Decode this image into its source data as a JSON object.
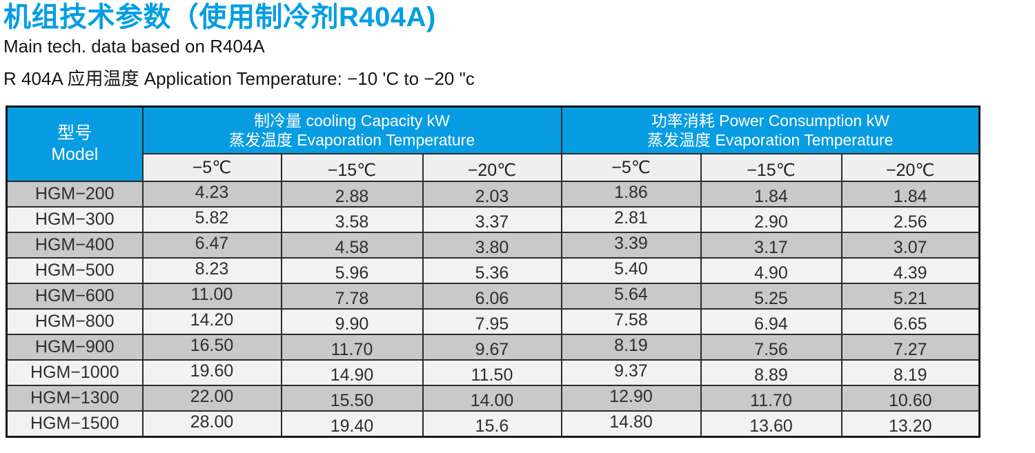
{
  "page": {
    "title": "机组技术参数（使用制冷剂R404A)",
    "subtitle": "Main tech. data based on R404A",
    "application_note": "R 404A 应用温度 Application Temperature: −10 'C to −20 \"c"
  },
  "colors": {
    "accent_cyan": "#009EE3",
    "table_header_blue": "#089CE2",
    "row_dark_gray": "#C9C9C9",
    "row_light_gray": "#F2F2F2",
    "subheader_gray": "#EFEFEF"
  },
  "table": {
    "model_header": {
      "zh": "型号",
      "en": "Model"
    },
    "groups": [
      {
        "line1": "制冷量 cooling Capacity kW",
        "line2": "蒸发温度 Evaporation Temperature"
      },
      {
        "line1": "功率消耗 Power Consumption kW",
        "line2": "蒸发温度 Evaporation Temperature"
      }
    ],
    "temp_headers": [
      "−5℃",
      "−15℃",
      "−20℃",
      "−5℃",
      "−15℃",
      "−20℃"
    ],
    "rows": [
      {
        "model": "HGM−200",
        "values": [
          "4.23",
          "2.88",
          "2.03",
          "1.86",
          "1.84",
          "1.84"
        ]
      },
      {
        "model": "HGM−300",
        "values": [
          "5.82",
          "3.58",
          "3.37",
          "2.81",
          "2.90",
          "2.56"
        ]
      },
      {
        "model": "HGM−400",
        "values": [
          "6.47",
          "4.58",
          "3.80",
          "3.39",
          "3.17",
          "3.07"
        ]
      },
      {
        "model": "HGM−500",
        "values": [
          "8.23",
          "5.96",
          "5.36",
          "5.40",
          "4.90",
          "4.39"
        ]
      },
      {
        "model": "HGM−600",
        "values": [
          "11.00",
          "7.78",
          "6.06",
          "5.64",
          "5.25",
          "5.21"
        ]
      },
      {
        "model": "HGM−800",
        "values": [
          "14.20",
          "9.90",
          "7.95",
          "7.58",
          "6.94",
          "6.65"
        ]
      },
      {
        "model": "HGM−900",
        "values": [
          "16.50",
          "11.70",
          "9.67",
          "8.19",
          "7.56",
          "7.27"
        ]
      },
      {
        "model": "HGM−1000",
        "values": [
          "19.60",
          "14.90",
          "11.50",
          "9.37",
          "8.89",
          "8.19"
        ]
      },
      {
        "model": "HGM−1300",
        "values": [
          "22.00",
          "15.50",
          "14.00",
          "12.90",
          "11.70",
          "10.60"
        ]
      },
      {
        "model": "HGM−1500",
        "values": [
          "28.00",
          "19.40",
          "15.6",
          "14.80",
          "13.60",
          "13.20"
        ]
      }
    ]
  }
}
